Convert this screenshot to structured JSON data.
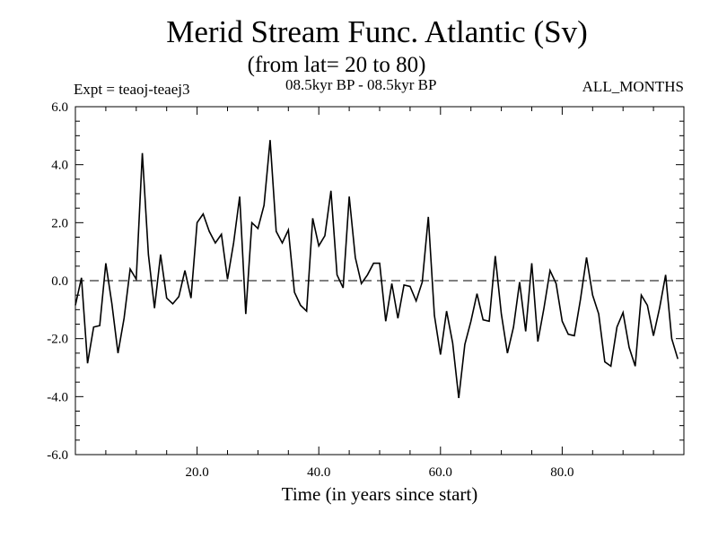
{
  "chart_data": {
    "type": "line",
    "title": "Merid Stream Func. Atlantic (Sv)",
    "subtitle": "(from lat= 20 to 80)",
    "left_annotation": "Expt = teaoj-teaej3",
    "center_annotation": "08.5kyr BP - 08.5kyr BP",
    "right_annotation": "ALL_MONTHS",
    "xlabel": "Time (in years since start)",
    "ylabel": "",
    "xlim": [
      0,
      100
    ],
    "ylim": [
      -6,
      6
    ],
    "xticks": [
      20,
      40,
      60,
      80
    ],
    "xtick_labels": [
      "20.0",
      "40.0",
      "60.0",
      "80.0"
    ],
    "yticks": [
      -6,
      -4,
      -2,
      0,
      2,
      4,
      6
    ],
    "ytick_labels": [
      "-6.0",
      "-4.0",
      "-2.0",
      "0.0",
      "2.0",
      "4.0",
      "6.0"
    ],
    "reference_line": {
      "y": 0,
      "style": "dashed"
    },
    "grid": false,
    "series": [
      {
        "name": "Merid Stream Func. Atlantic",
        "x": [
          0,
          1,
          2,
          3,
          4,
          5,
          6,
          7,
          8,
          9,
          10,
          11,
          12,
          13,
          14,
          15,
          16,
          17,
          18,
          19,
          20,
          21,
          22,
          23,
          24,
          25,
          26,
          27,
          28,
          29,
          30,
          31,
          32,
          33,
          34,
          35,
          36,
          37,
          38,
          39,
          40,
          41,
          42,
          43,
          44,
          45,
          46,
          47,
          48,
          49,
          50,
          51,
          52,
          53,
          54,
          55,
          56,
          57,
          58,
          59,
          60,
          61,
          62,
          63,
          64,
          65,
          66,
          67,
          68,
          69,
          70,
          71,
          72,
          73,
          74,
          75,
          76,
          77,
          78,
          79,
          80,
          81,
          82,
          83,
          84,
          85,
          86,
          87,
          88,
          89,
          90,
          91,
          92,
          93,
          94,
          95,
          96,
          97,
          98,
          99
        ],
        "values": [
          -0.85,
          0.1,
          -2.85,
          -1.6,
          -1.55,
          0.6,
          -0.8,
          -2.5,
          -1.3,
          0.4,
          0.05,
          4.4,
          0.9,
          -0.95,
          0.9,
          -0.6,
          -0.8,
          -0.55,
          0.35,
          -0.6,
          2.0,
          2.3,
          1.7,
          1.3,
          1.6,
          0.05,
          1.3,
          2.9,
          -1.15,
          2.0,
          1.8,
          2.6,
          4.85,
          1.7,
          1.3,
          1.75,
          -0.4,
          -0.85,
          -1.05,
          2.15,
          1.2,
          1.55,
          3.1,
          0.2,
          -0.25,
          2.9,
          0.8,
          -0.1,
          0.2,
          0.6,
          0.6,
          -1.4,
          -0.1,
          -1.3,
          -0.15,
          -0.2,
          -0.7,
          -0.05,
          2.2,
          -1.2,
          -2.55,
          -1.05,
          -2.15,
          -4.05,
          -2.2,
          -1.4,
          -0.45,
          -1.35,
          -1.4,
          0.85,
          -1.15,
          -2.5,
          -1.6,
          -0.05,
          -1.75,
          0.6,
          -2.1,
          -0.95,
          0.35,
          -0.1,
          -1.4,
          -1.85,
          -1.9,
          -0.65,
          0.8,
          -0.5,
          -1.15,
          -2.8,
          -2.95,
          -1.6,
          -1.1,
          -2.3,
          -2.95,
          -0.5,
          -0.85,
          -1.9,
          -0.95,
          0.2,
          -2.0,
          -2.7
        ]
      }
    ]
  }
}
